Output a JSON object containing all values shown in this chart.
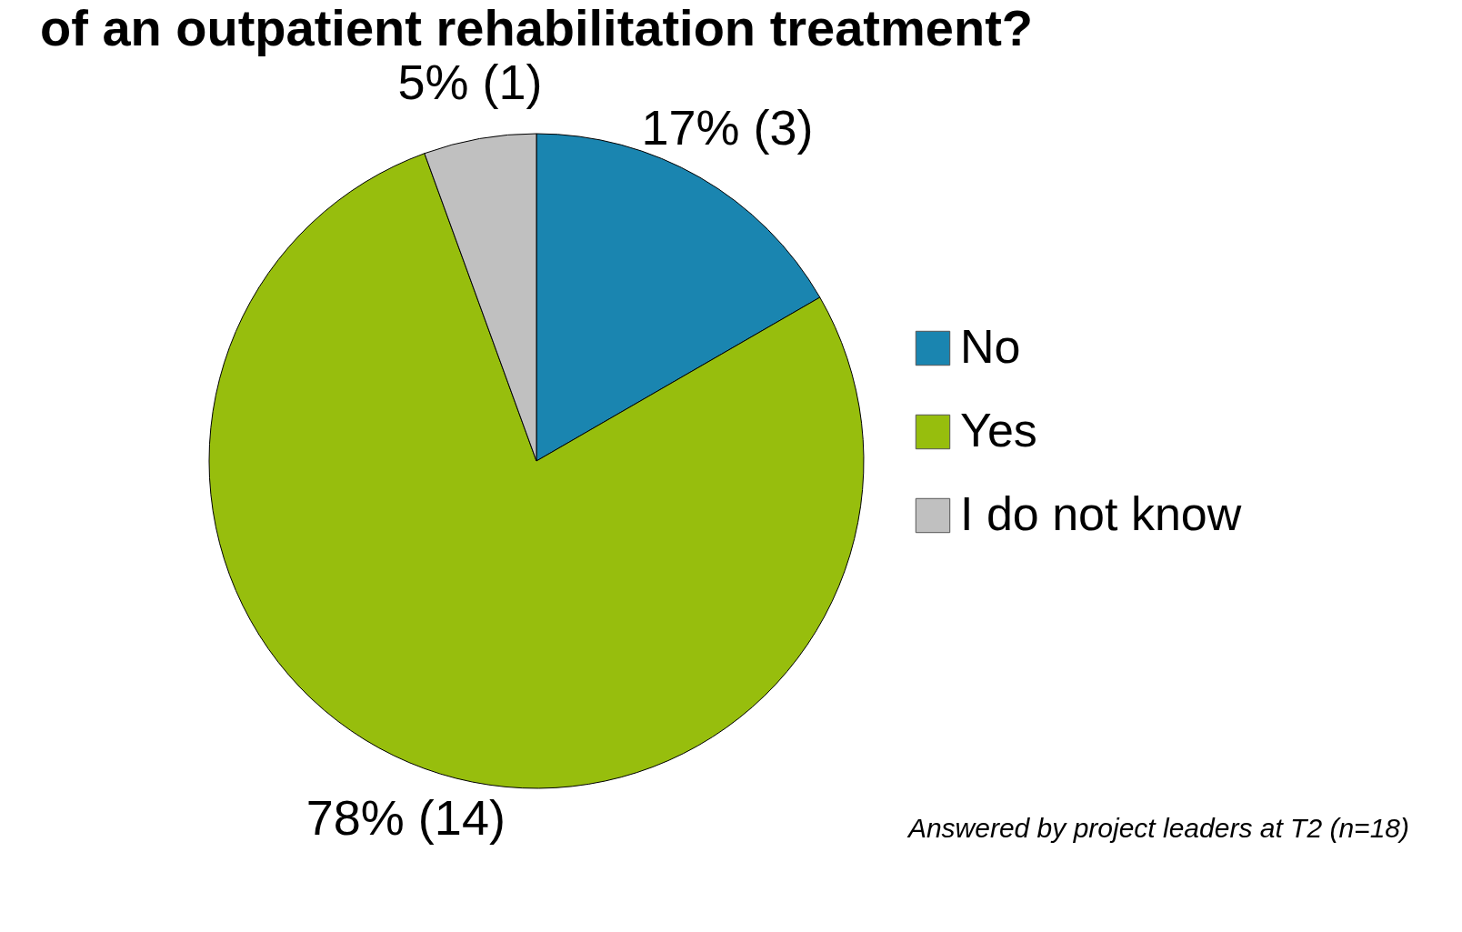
{
  "chart_data": {
    "type": "pie",
    "title": "of an outpatient rehabilitation treatment?",
    "categories": [
      "No",
      "Yes",
      "I do not know"
    ],
    "values": [
      3,
      14,
      1
    ],
    "value_labels": [
      "17% (3)",
      "78% (14)",
      "5% (1)"
    ],
    "colors": [
      "#1a85b0",
      "#97be0d",
      "#c0c0c0"
    ],
    "legend": "right",
    "annotations": [
      "Answered by project leaders at T2 (n=18)"
    ]
  }
}
